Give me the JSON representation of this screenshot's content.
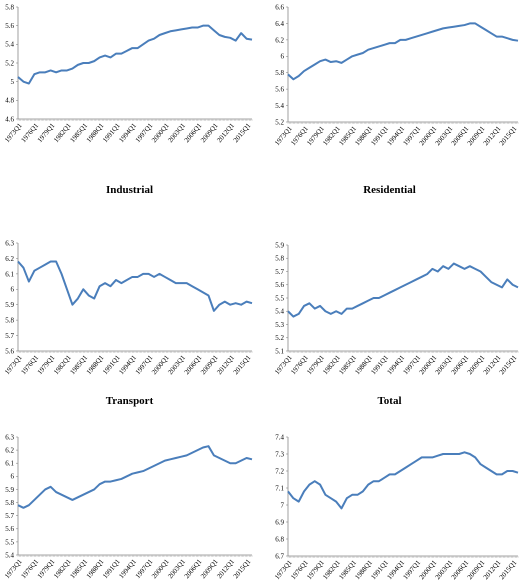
{
  "chart_data": [
    {
      "type": "line",
      "title": "",
      "ylim": [
        4.6,
        5.8
      ],
      "yticks": [
        "4.6",
        "4.8",
        "5",
        "5.2",
        "5.4",
        "5.6",
        "5.8"
      ],
      "xtick_labels": [
        "1973Q1",
        "1976Q1",
        "1979Q1",
        "1982Q1",
        "1985Q1",
        "1988Q1",
        "1991Q1",
        "1994Q1",
        "1997Q1",
        "2000Q1",
        "2003Q1",
        "2006Q1",
        "2009Q1",
        "2012Q1",
        "2015Q1"
      ],
      "color": "#4A7EBB",
      "x": [
        1973,
        1974,
        1975,
        1976,
        1977,
        1978,
        1979,
        1980,
        1981,
        1982,
        1983,
        1984,
        1985,
        1986,
        1987,
        1988,
        1989,
        1990,
        1991,
        1992,
        1993,
        1994,
        1995,
        1996,
        1997,
        1998,
        1999,
        2000,
        2001,
        2002,
        2003,
        2004,
        2005,
        2006,
        2007,
        2008,
        2009,
        2010,
        2011,
        2012,
        2013,
        2014,
        2015,
        2016
      ],
      "y": [
        5.05,
        5.0,
        4.98,
        5.08,
        5.1,
        5.1,
        5.12,
        5.1,
        5.12,
        5.12,
        5.14,
        5.18,
        5.2,
        5.2,
        5.22,
        5.26,
        5.28,
        5.26,
        5.3,
        5.3,
        5.33,
        5.36,
        5.36,
        5.4,
        5.44,
        5.46,
        5.5,
        5.52,
        5.54,
        5.55,
        5.56,
        5.57,
        5.58,
        5.58,
        5.6,
        5.6,
        5.55,
        5.5,
        5.48,
        5.47,
        5.44,
        5.52,
        5.46,
        5.45
      ]
    },
    {
      "type": "line",
      "title": "",
      "ylim": [
        5.2,
        6.6
      ],
      "yticks": [
        "5.2",
        "5.4",
        "5.6",
        "5.8",
        "6",
        "6.2",
        "6.4",
        "6.6"
      ],
      "xtick_labels": [
        "1973Q1",
        "1976Q1",
        "1979Q1",
        "1982Q1",
        "1985Q1",
        "1988Q1",
        "1991Q1",
        "1994Q1",
        "1997Q1",
        "2000Q1",
        "2003Q1",
        "2006Q1",
        "2009Q1",
        "2012Q1",
        "2015Q1"
      ],
      "color": "#4A7EBB",
      "x": [
        1973,
        1974,
        1975,
        1976,
        1977,
        1978,
        1979,
        1980,
        1981,
        1982,
        1983,
        1984,
        1985,
        1986,
        1987,
        1988,
        1989,
        1990,
        1991,
        1992,
        1993,
        1994,
        1995,
        1996,
        1997,
        1998,
        1999,
        2000,
        2001,
        2002,
        2003,
        2004,
        2005,
        2006,
        2007,
        2008,
        2009,
        2010,
        2011,
        2012,
        2013,
        2014,
        2015,
        2016
      ],
      "y": [
        5.78,
        5.72,
        5.76,
        5.82,
        5.86,
        5.9,
        5.94,
        5.96,
        5.93,
        5.94,
        5.92,
        5.96,
        6.0,
        6.02,
        6.04,
        6.08,
        6.1,
        6.12,
        6.14,
        6.16,
        6.16,
        6.2,
        6.2,
        6.22,
        6.24,
        6.26,
        6.28,
        6.3,
        6.32,
        6.34,
        6.35,
        6.36,
        6.37,
        6.38,
        6.4,
        6.4,
        6.36,
        6.32,
        6.28,
        6.24,
        6.24,
        6.22,
        6.2,
        6.19
      ]
    },
    {
      "type": "line",
      "title": "Industrial",
      "ylim": [
        5.6,
        6.3
      ],
      "yticks": [
        "5.6",
        "5.7",
        "5.8",
        "5.9",
        "6",
        "6.1",
        "6.2",
        "6.3"
      ],
      "xtick_labels": [
        "1973Q1",
        "1976Q1",
        "1979Q1",
        "1982Q1",
        "1985Q1",
        "1988Q1",
        "1991Q1",
        "1994Q1",
        "1997Q1",
        "2000Q1",
        "2003Q1",
        "2006Q1",
        "2009Q1",
        "2012Q1",
        "2015Q1"
      ],
      "color": "#4A7EBB",
      "x": [
        1973,
        1974,
        1975,
        1976,
        1977,
        1978,
        1979,
        1980,
        1981,
        1982,
        1983,
        1984,
        1985,
        1986,
        1987,
        1988,
        1989,
        1990,
        1991,
        1992,
        1993,
        1994,
        1995,
        1996,
        1997,
        1998,
        1999,
        2000,
        2001,
        2002,
        2003,
        2004,
        2005,
        2006,
        2007,
        2008,
        2009,
        2010,
        2011,
        2012,
        2013,
        2014,
        2015,
        2016
      ],
      "y": [
        6.18,
        6.14,
        6.05,
        6.12,
        6.14,
        6.16,
        6.18,
        6.18,
        6.1,
        6.0,
        5.9,
        5.94,
        6.0,
        5.96,
        5.94,
        6.02,
        6.04,
        6.02,
        6.06,
        6.04,
        6.06,
        6.08,
        6.08,
        6.1,
        6.1,
        6.08,
        6.1,
        6.08,
        6.06,
        6.04,
        6.04,
        6.04,
        6.02,
        6.0,
        5.98,
        5.96,
        5.86,
        5.9,
        5.92,
        5.9,
        5.91,
        5.9,
        5.92,
        5.91
      ]
    },
    {
      "type": "line",
      "title": "Residential",
      "ylim": [
        5.1,
        5.9
      ],
      "yticks": [
        "5.1",
        "5.2",
        "5.3",
        "5.4",
        "5.5",
        "5.6",
        "5.7",
        "5.8",
        "5.9"
      ],
      "xtick_labels": [
        "1973Q1",
        "1976Q1",
        "1979Q1",
        "1982Q1",
        "1985Q1",
        "1988Q1",
        "1991Q1",
        "1994Q1",
        "1997Q1",
        "2000Q1",
        "2003Q1",
        "2006Q1",
        "2009Q1",
        "2012Q1",
        "2015Q1"
      ],
      "color": "#4A7EBB",
      "x": [
        1973,
        1974,
        1975,
        1976,
        1977,
        1978,
        1979,
        1980,
        1981,
        1982,
        1983,
        1984,
        1985,
        1986,
        1987,
        1988,
        1989,
        1990,
        1991,
        1992,
        1993,
        1994,
        1995,
        1996,
        1997,
        1998,
        1999,
        2000,
        2001,
        2002,
        2003,
        2004,
        2005,
        2006,
        2007,
        2008,
        2009,
        2010,
        2011,
        2012,
        2013,
        2014,
        2015,
        2016
      ],
      "y": [
        5.4,
        5.36,
        5.38,
        5.44,
        5.46,
        5.42,
        5.44,
        5.4,
        5.38,
        5.4,
        5.38,
        5.42,
        5.42,
        5.44,
        5.46,
        5.48,
        5.5,
        5.5,
        5.52,
        5.54,
        5.56,
        5.58,
        5.6,
        5.62,
        5.64,
        5.66,
        5.68,
        5.72,
        5.7,
        5.74,
        5.72,
        5.76,
        5.74,
        5.72,
        5.74,
        5.72,
        5.7,
        5.66,
        5.62,
        5.6,
        5.58,
        5.64,
        5.6,
        5.58
      ]
    },
    {
      "type": "line",
      "title": "Transport",
      "ylim": [
        5.4,
        6.3
      ],
      "yticks": [
        "5.4",
        "5.5",
        "5.6",
        "5.7",
        "5.8",
        "5.9",
        "6",
        "6.1",
        "6.2",
        "6.3"
      ],
      "xtick_labels": [
        "1973Q1",
        "1976Q1",
        "1979Q1",
        "1982Q1",
        "1985Q1",
        "1988Q1",
        "1991Q1",
        "1994Q1",
        "1997Q1",
        "2000Q1",
        "2003Q1",
        "2006Q1",
        "2009Q1",
        "2012Q1",
        "2015Q1"
      ],
      "color": "#4A7EBB",
      "x": [
        1973,
        1974,
        1975,
        1976,
        1977,
        1978,
        1979,
        1980,
        1981,
        1982,
        1983,
        1984,
        1985,
        1986,
        1987,
        1988,
        1989,
        1990,
        1991,
        1992,
        1993,
        1994,
        1995,
        1996,
        1997,
        1998,
        1999,
        2000,
        2001,
        2002,
        2003,
        2004,
        2005,
        2006,
        2007,
        2008,
        2009,
        2010,
        2011,
        2012,
        2013,
        2014,
        2015,
        2016
      ],
      "y": [
        5.78,
        5.76,
        5.78,
        5.82,
        5.86,
        5.9,
        5.92,
        5.88,
        5.86,
        5.84,
        5.82,
        5.84,
        5.86,
        5.88,
        5.9,
        5.94,
        5.96,
        5.96,
        5.97,
        5.98,
        6.0,
        6.02,
        6.03,
        6.04,
        6.06,
        6.08,
        6.1,
        6.12,
        6.13,
        6.14,
        6.15,
        6.16,
        6.18,
        6.2,
        6.22,
        6.23,
        6.16,
        6.14,
        6.12,
        6.1,
        6.1,
        6.12,
        6.14,
        6.13
      ]
    },
    {
      "type": "line",
      "title": "Total",
      "ylim": [
        6.7,
        7.4
      ],
      "yticks": [
        "6.7",
        "6.8",
        "6.9",
        "7",
        "7.1",
        "7.2",
        "7.3",
        "7.4"
      ],
      "xtick_labels": [
        "1973Q1",
        "1976Q1",
        "1979Q1",
        "1982Q1",
        "1985Q1",
        "1988Q1",
        "1991Q1",
        "1994Q1",
        "1997Q1",
        "2000Q1",
        "2003Q1",
        "2006Q1",
        "2009Q1",
        "2012Q1",
        "2015Q1"
      ],
      "color": "#4A7EBB",
      "x": [
        1973,
        1974,
        1975,
        1976,
        1977,
        1978,
        1979,
        1980,
        1981,
        1982,
        1983,
        1984,
        1985,
        1986,
        1987,
        1988,
        1989,
        1990,
        1991,
        1992,
        1993,
        1994,
        1995,
        1996,
        1997,
        1998,
        1999,
        2000,
        2001,
        2002,
        2003,
        2004,
        2005,
        2006,
        2007,
        2008,
        2009,
        2010,
        2011,
        2012,
        2013,
        2014,
        2015,
        2016
      ],
      "y": [
        7.08,
        7.04,
        7.02,
        7.08,
        7.12,
        7.14,
        7.12,
        7.06,
        7.04,
        7.02,
        6.98,
        7.04,
        7.06,
        7.06,
        7.08,
        7.12,
        7.14,
        7.14,
        7.16,
        7.18,
        7.18,
        7.2,
        7.22,
        7.24,
        7.26,
        7.28,
        7.28,
        7.28,
        7.29,
        7.3,
        7.3,
        7.3,
        7.3,
        7.31,
        7.3,
        7.28,
        7.24,
        7.22,
        7.2,
        7.18,
        7.18,
        7.2,
        7.2,
        7.19
      ]
    }
  ]
}
